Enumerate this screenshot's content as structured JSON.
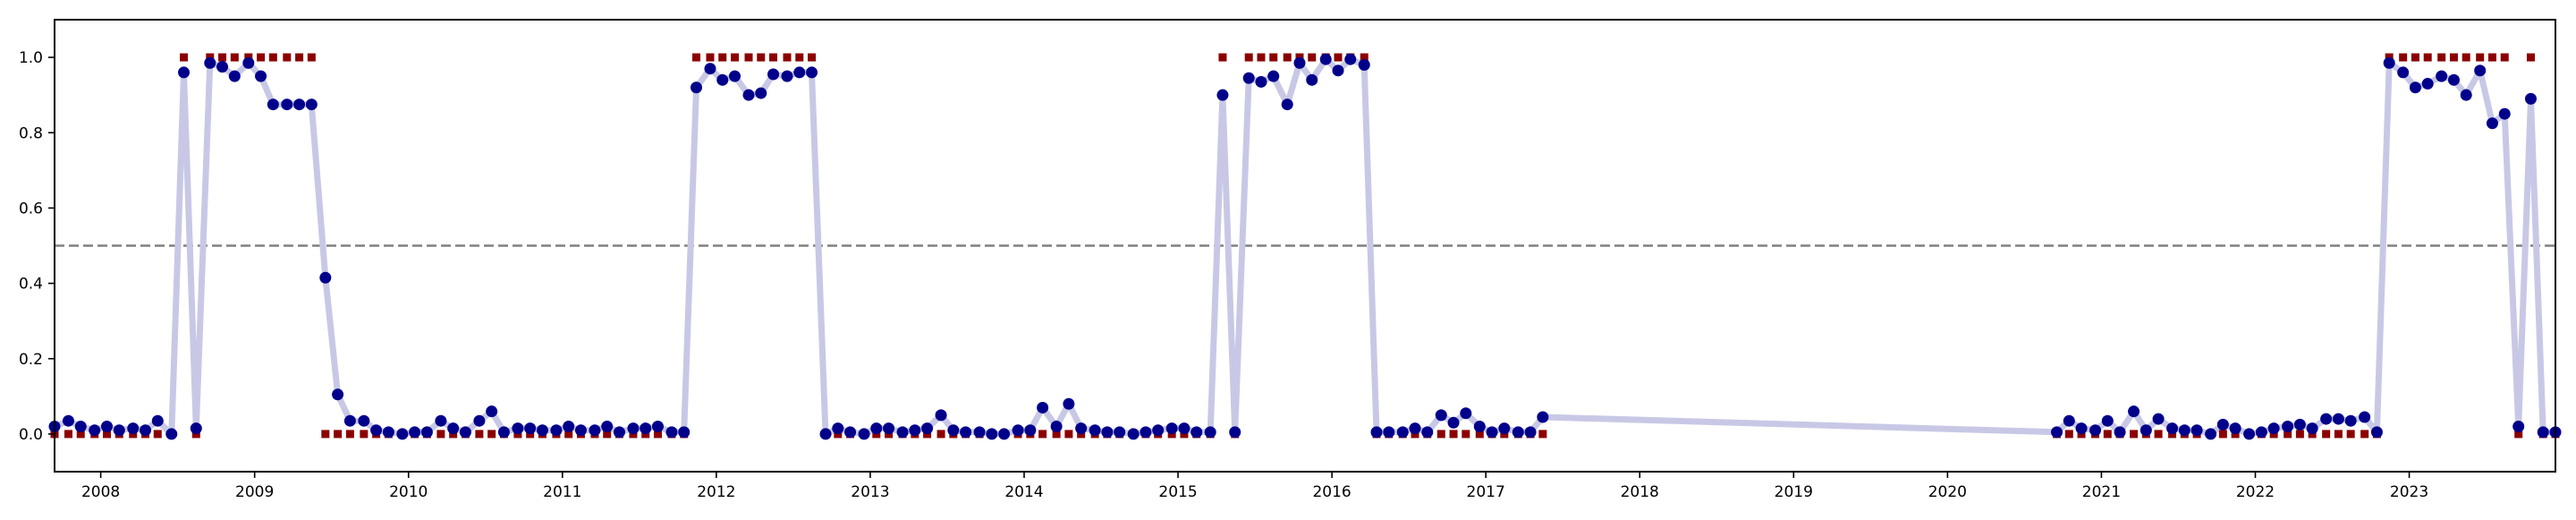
{
  "chart_data": {
    "type": "line",
    "title": "",
    "xlabel": "",
    "ylabel": "",
    "xlim": [
      2007.7,
      2023.95
    ],
    "ylim": [
      -0.1,
      1.1
    ],
    "grid": false,
    "legend": "none",
    "x_ticks": [
      {
        "value": 2008,
        "label": "2008"
      },
      {
        "value": 2009,
        "label": "2009"
      },
      {
        "value": 2010,
        "label": "2010"
      },
      {
        "value": 2011,
        "label": "2011"
      },
      {
        "value": 2012,
        "label": "2012"
      },
      {
        "value": 2013,
        "label": "2013"
      },
      {
        "value": 2014,
        "label": "2014"
      },
      {
        "value": 2015,
        "label": "2015"
      },
      {
        "value": 2016,
        "label": "2016"
      },
      {
        "value": 2017,
        "label": "2017"
      },
      {
        "value": 2018,
        "label": "2018"
      },
      {
        "value": 2019,
        "label": "2019"
      },
      {
        "value": 2020,
        "label": "2020"
      },
      {
        "value": 2021,
        "label": "2021"
      },
      {
        "value": 2022,
        "label": "2022"
      },
      {
        "value": 2023,
        "label": "2023"
      }
    ],
    "y_ticks": [
      {
        "value": 0.0,
        "label": "0.0"
      },
      {
        "value": 0.2,
        "label": "0.2"
      },
      {
        "value": 0.4,
        "label": "0.4"
      },
      {
        "value": 0.6,
        "label": "0.6"
      },
      {
        "value": 0.8,
        "label": "0.8"
      },
      {
        "value": 1.0,
        "label": "1.0"
      }
    ],
    "threshold": 0.5,
    "colors": {
      "line": "#c8c8e6",
      "point": "#00008b",
      "marker": "#8b0000",
      "threshold": "#808080",
      "axes": "#000000"
    },
    "series": [
      {
        "style": "line+circle",
        "x": [
          2007.7,
          2007.79,
          2007.87,
          2007.96,
          2008.04,
          2008.12,
          2008.21,
          2008.29,
          2008.37,
          2008.46,
          2008.54,
          2008.62,
          2008.71,
          2008.79,
          2008.87,
          2008.96,
          2009.04,
          2009.12,
          2009.21,
          2009.29,
          2009.37,
          2009.46,
          2009.54,
          2009.62,
          2009.71,
          2009.79,
          2009.87,
          2009.96,
          2010.04,
          2010.12,
          2010.21,
          2010.29,
          2010.37,
          2010.46,
          2010.54,
          2010.62,
          2010.71,
          2010.79,
          2010.87,
          2010.96,
          2011.04,
          2011.12,
          2011.21,
          2011.29,
          2011.37,
          2011.46,
          2011.54,
          2011.62,
          2011.71,
          2011.79,
          2011.87,
          2011.96,
          2012.04,
          2012.12,
          2012.21,
          2012.29,
          2012.37,
          2012.46,
          2012.54,
          2012.62,
          2012.71,
          2012.79,
          2012.87,
          2012.96,
          2013.04,
          2013.12,
          2013.21,
          2013.29,
          2013.37,
          2013.46,
          2013.54,
          2013.62,
          2013.71,
          2013.79,
          2013.87,
          2013.96,
          2014.04,
          2014.12,
          2014.21,
          2014.29,
          2014.37,
          2014.46,
          2014.54,
          2014.62,
          2014.71,
          2014.79,
          2014.87,
          2014.96,
          2015.04,
          2015.12,
          2015.21,
          2015.29,
          2015.37,
          2015.46,
          2015.54,
          2015.62,
          2015.71,
          2015.79,
          2015.87,
          2015.96,
          2016.04,
          2016.12,
          2016.21,
          2016.29,
          2016.37,
          2016.46,
          2016.54,
          2016.62,
          2016.71,
          2016.79,
          2016.87,
          2016.96,
          2017.04,
          2017.12,
          2017.21,
          2017.29,
          2017.37,
          2020.71,
          2020.79,
          2020.87,
          2020.96,
          2021.04,
          2021.12,
          2021.21,
          2021.29,
          2021.37,
          2021.46,
          2021.54,
          2021.62,
          2021.71,
          2021.79,
          2021.87,
          2021.96,
          2022.04,
          2022.12,
          2022.21,
          2022.29,
          2022.37,
          2022.46,
          2022.54,
          2022.62,
          2022.71,
          2022.79,
          2022.87,
          2022.96,
          2023.04,
          2023.12,
          2023.21,
          2023.29,
          2023.37,
          2023.46,
          2023.54,
          2023.62,
          2023.71,
          2023.79,
          2023.87,
          2023.95
        ],
        "y": [
          0.02,
          0.035,
          0.02,
          0.01,
          0.02,
          0.01,
          0.015,
          0.01,
          0.035,
          0.0,
          0.96,
          0.015,
          0.985,
          0.975,
          0.95,
          0.985,
          0.95,
          0.875,
          0.875,
          0.875,
          0.875,
          0.415,
          0.105,
          0.035,
          0.035,
          0.01,
          0.005,
          0.0,
          0.005,
          0.005,
          0.035,
          0.015,
          0.005,
          0.035,
          0.06,
          0.005,
          0.015,
          0.015,
          0.01,
          0.01,
          0.02,
          0.01,
          0.01,
          0.02,
          0.005,
          0.015,
          0.015,
          0.02,
          0.005,
          0.005,
          0.92,
          0.97,
          0.94,
          0.95,
          0.9,
          0.905,
          0.955,
          0.95,
          0.96,
          0.96,
          0.0,
          0.015,
          0.005,
          0.0,
          0.015,
          0.015,
          0.005,
          0.01,
          0.015,
          0.05,
          0.01,
          0.005,
          0.005,
          0.0,
          0.0,
          0.01,
          0.01,
          0.07,
          0.02,
          0.08,
          0.015,
          0.01,
          0.005,
          0.005,
          0.0,
          0.005,
          0.01,
          0.015,
          0.015,
          0.005,
          0.005,
          0.9,
          0.005,
          0.945,
          0.935,
          0.95,
          0.875,
          0.985,
          0.94,
          0.995,
          0.965,
          0.995,
          0.98,
          0.005,
          0.005,
          0.005,
          0.015,
          0.005,
          0.05,
          0.03,
          0.055,
          0.02,
          0.005,
          0.015,
          0.005,
          0.005,
          0.045,
          0.005,
          0.035,
          0.015,
          0.01,
          0.035,
          0.005,
          0.06,
          0.01,
          0.04,
          0.015,
          0.01,
          0.01,
          0.0,
          0.025,
          0.015,
          0.0,
          0.005,
          0.015,
          0.02,
          0.025,
          0.015,
          0.04,
          0.04,
          0.035,
          0.045,
          0.005,
          0.985,
          0.96,
          0.92,
          0.93,
          0.95,
          0.94,
          0.9,
          0.965,
          0.825,
          0.85,
          0.02,
          0.89,
          0.005,
          0.005
        ]
      },
      {
        "style": "square",
        "x": [
          2007.7,
          2007.79,
          2007.87,
          2007.96,
          2008.04,
          2008.12,
          2008.21,
          2008.29,
          2008.37,
          2008.46,
          2008.54,
          2008.62,
          2008.71,
          2008.79,
          2008.87,
          2008.96,
          2009.04,
          2009.12,
          2009.21,
          2009.29,
          2009.37,
          2009.46,
          2009.54,
          2009.62,
          2009.71,
          2009.79,
          2009.87,
          2009.96,
          2010.04,
          2010.12,
          2010.21,
          2010.29,
          2010.37,
          2010.46,
          2010.54,
          2010.62,
          2010.71,
          2010.79,
          2010.87,
          2010.96,
          2011.04,
          2011.12,
          2011.21,
          2011.29,
          2011.37,
          2011.46,
          2011.54,
          2011.62,
          2011.71,
          2011.79,
          2011.87,
          2011.96,
          2012.04,
          2012.12,
          2012.21,
          2012.29,
          2012.37,
          2012.46,
          2012.54,
          2012.62,
          2012.71,
          2012.79,
          2012.87,
          2012.96,
          2013.04,
          2013.12,
          2013.21,
          2013.29,
          2013.37,
          2013.46,
          2013.54,
          2013.62,
          2013.71,
          2013.79,
          2013.87,
          2013.96,
          2014.04,
          2014.12,
          2014.21,
          2014.29,
          2014.37,
          2014.46,
          2014.54,
          2014.62,
          2014.71,
          2014.79,
          2014.87,
          2014.96,
          2015.04,
          2015.12,
          2015.21,
          2015.29,
          2015.37,
          2015.46,
          2015.54,
          2015.62,
          2015.71,
          2015.79,
          2015.87,
          2015.96,
          2016.04,
          2016.12,
          2016.21,
          2016.29,
          2016.37,
          2016.46,
          2016.54,
          2016.62,
          2016.71,
          2016.79,
          2016.87,
          2016.96,
          2017.04,
          2017.12,
          2017.21,
          2017.29,
          2017.37,
          2020.71,
          2020.79,
          2020.87,
          2020.96,
          2021.04,
          2021.12,
          2021.21,
          2021.29,
          2021.37,
          2021.46,
          2021.54,
          2021.62,
          2021.71,
          2021.79,
          2021.87,
          2021.96,
          2022.04,
          2022.12,
          2022.21,
          2022.29,
          2022.37,
          2022.46,
          2022.54,
          2022.62,
          2022.71,
          2022.79,
          2022.87,
          2022.96,
          2023.04,
          2023.12,
          2023.21,
          2023.29,
          2023.37,
          2023.46,
          2023.54,
          2023.62,
          2023.71,
          2023.79,
          2023.87,
          2023.95
        ],
        "y": [
          0,
          0,
          0,
          0,
          0,
          0,
          0,
          0,
          0,
          0,
          1,
          0,
          1,
          1,
          1,
          1,
          1,
          1,
          1,
          1,
          1,
          0,
          0,
          0,
          0,
          0,
          0,
          0,
          0,
          0,
          0,
          0,
          0,
          0,
          0,
          0,
          0,
          0,
          0,
          0,
          0,
          0,
          0,
          0,
          0,
          0,
          0,
          0,
          0,
          0,
          1,
          1,
          1,
          1,
          1,
          1,
          1,
          1,
          1,
          1,
          0,
          0,
          0,
          0,
          0,
          0,
          0,
          0,
          0,
          0,
          0,
          0,
          0,
          0,
          0,
          0,
          0,
          0,
          0,
          0,
          0,
          0,
          0,
          0,
          0,
          0,
          0,
          0,
          0,
          0,
          0,
          1,
          0,
          1,
          1,
          1,
          1,
          1,
          1,
          1,
          1,
          1,
          1,
          0,
          0,
          0,
          0,
          0,
          0,
          0,
          0,
          0,
          0,
          0,
          0,
          0,
          0,
          0,
          0,
          0,
          0,
          0,
          0,
          0,
          0,
          0,
          0,
          0,
          0,
          0,
          0,
          0,
          0,
          0,
          0,
          0,
          0,
          0,
          0,
          0,
          0,
          0,
          0,
          1,
          1,
          1,
          1,
          1,
          1,
          1,
          1,
          1,
          1,
          0,
          1,
          0,
          0
        ]
      }
    ]
  }
}
